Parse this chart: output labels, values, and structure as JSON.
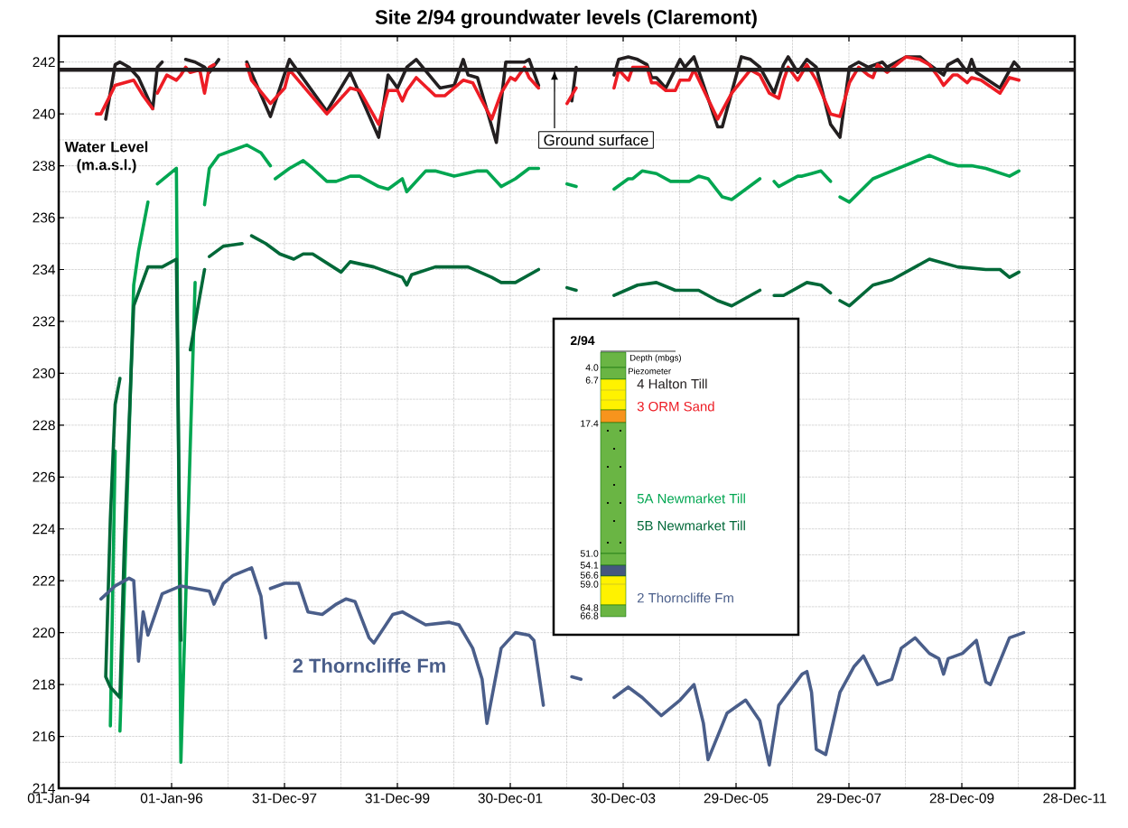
{
  "chart_data": {
    "type": "line",
    "title": "Site 2/94 groundwater levels (Claremont)",
    "ylabel": "Water Level (m.a.s.l.)",
    "xlim": [
      "1994-01-01",
      "2011-12-28"
    ],
    "ylim": [
      214,
      243
    ],
    "xticks": [
      {
        "value": "1994-01-01",
        "label": "01-Jan-94"
      },
      {
        "value": "1996-01-01",
        "label": "01-Jan-96"
      },
      {
        "value": "1997-12-31",
        "label": "31-Dec-97"
      },
      {
        "value": "1999-12-31",
        "label": "31-Dec-99"
      },
      {
        "value": "2001-12-30",
        "label": "30-Dec-01"
      },
      {
        "value": "2003-12-30",
        "label": "30-Dec-03"
      },
      {
        "value": "2005-12-29",
        "label": "29-Dec-05"
      },
      {
        "value": "2007-12-29",
        "label": "29-Dec-07"
      },
      {
        "value": "2009-12-28",
        "label": "28-Dec-09"
      },
      {
        "value": "2011-12-28",
        "label": "28-Dec-11"
      }
    ],
    "yticks": [
      214,
      216,
      218,
      220,
      222,
      224,
      226,
      228,
      230,
      232,
      234,
      236,
      238,
      240,
      242
    ],
    "grid": true,
    "legend": "center",
    "ref_lines": [
      {
        "axis": "y",
        "value": 241.7,
        "label": "Ground surface",
        "color": "#231f20"
      }
    ],
    "annotations": [
      "2/94",
      "Depth (mbgs)",
      "Piezometer",
      "4.0",
      "6.7",
      "17.4",
      "51.0",
      "54.1",
      "56.6",
      "59.0",
      "64.8",
      "66.8",
      "2 Thorncliffe Fm"
    ],
    "series": [
      {
        "name": "4 Halton Till",
        "color": "#231f20",
        "x": [
          "1994-11",
          "1995-01",
          "1995-02",
          "1995-04",
          "1995-06",
          "1995-09",
          "1995-10",
          "1995-11",
          null,
          "1996-04",
          "1996-06",
          "1996-08",
          "1996-09",
          "1996-11",
          null,
          "1997-05",
          "1997-10",
          "1998-02",
          "1998-10",
          "1999-03",
          "1999-09",
          "1999-11",
          "2000-01",
          "2000-03",
          "2000-05",
          "2000-10",
          "2001-01",
          "2001-03",
          "2001-04",
          "2001-06",
          "2001-10",
          "2001-12",
          "2002-04",
          "2002-05",
          "2002-07",
          null,
          "2003-02",
          "2003-03",
          null,
          "2003-11",
          "2003-12",
          "2004-02",
          "2004-04",
          "2004-06",
          "2004-07",
          "2004-08",
          "2004-10",
          "2005-01",
          "2005-02",
          "2005-04",
          "2005-09",
          "2005-10",
          "2006-02",
          "2006-04",
          "2006-06",
          "2006-09",
          "2006-11",
          "2006-12",
          "2007-02",
          "2007-04",
          "2007-06",
          "2007-09",
          "2007-11",
          "2008-01",
          "2008-03",
          "2008-05",
          "2008-08",
          "2008-09",
          "2009-01",
          "2009-04",
          "2009-06",
          "2009-09",
          "2009-10",
          "2009-12",
          "2010-02",
          "2010-03",
          "2010-04",
          "2010-09",
          "2010-12",
          "2011-01"
        ],
        "values": [
          239.8,
          241.9,
          242.0,
          241.8,
          241.4,
          240.2,
          241.8,
          242.0,
          null,
          242.1,
          242.0,
          241.8,
          241.6,
          242.1,
          null,
          242.0,
          239.9,
          242.1,
          240.1,
          241.6,
          239.1,
          241.5,
          241.0,
          241.8,
          242.1,
          241.0,
          241.1,
          242.1,
          241.5,
          241.4,
          238.9,
          242.0,
          242.0,
          242.1,
          241.1,
          null,
          240.5,
          241.8,
          null,
          241.5,
          242.1,
          242.2,
          242.1,
          241.9,
          241.4,
          241.4,
          241.0,
          242.1,
          241.8,
          242.2,
          239.5,
          239.5,
          242.2,
          242.1,
          241.8,
          240.8,
          241.9,
          242.2,
          241.6,
          242.1,
          241.8,
          239.6,
          239.1,
          241.8,
          242.0,
          241.8,
          242.0,
          241.8,
          242.2,
          242.2,
          241.9,
          241.5,
          241.9,
          242.1,
          241.6,
          242.1,
          241.6,
          241.0,
          242.0,
          241.8
        ]
      },
      {
        "name": "3 ORM Sand",
        "color": "#ed1c24",
        "x": [
          "1994-09",
          "1994-10",
          "1995-01",
          "1995-05",
          "1995-07",
          "1995-09",
          null,
          "1995-10",
          "1995-12",
          "1996-02",
          "1996-03",
          "1996-04",
          "1996-05",
          "1996-07",
          "1996-08",
          "1996-09",
          "1996-10",
          null,
          "1997-05",
          "1997-06",
          "1997-10",
          "1998-01",
          "1998-02",
          "1998-10",
          "1999-03",
          "1999-05",
          "1999-09",
          "1999-11",
          "2000-01",
          "2000-02",
          "2000-03",
          "2000-05",
          "2000-09",
          "2000-11",
          "2001-03",
          "2001-05",
          "2001-07",
          "2001-09",
          "2001-11",
          "2002-01",
          "2002-02",
          "2002-04",
          "2002-05",
          "2002-07",
          null,
          "2003-01",
          "2003-03",
          null,
          "2003-11",
          "2003-12",
          "2004-02",
          "2004-03",
          "2004-06",
          "2004-07",
          "2004-08",
          "2004-10",
          "2004-12",
          "2005-01",
          "2005-03",
          "2005-04",
          "2005-09",
          "2005-12",
          "2006-04",
          "2006-06",
          "2006-08",
          "2006-10",
          "2006-11",
          "2006-12",
          "2007-02",
          "2007-04",
          "2007-06",
          "2007-09",
          "2007-11",
          "2008-01",
          "2008-03",
          "2008-05",
          "2008-06",
          "2008-07",
          "2008-09",
          "2009-01",
          "2009-04",
          "2009-06",
          "2009-08",
          "2009-09",
          "2009-11",
          "2009-12",
          "2010-02",
          "2010-03",
          "2010-05",
          "2010-09",
          "2010-11",
          "2011-01"
        ],
        "values": [
          240.0,
          240.0,
          241.1,
          241.3,
          240.7,
          240.2,
          null,
          240.8,
          241.5,
          241.3,
          241.5,
          241.8,
          241.6,
          241.7,
          240.8,
          241.8,
          241.9,
          null,
          241.9,
          241.3,
          240.4,
          241.0,
          241.7,
          240.0,
          241.0,
          240.9,
          239.6,
          240.9,
          240.9,
          240.5,
          240.9,
          241.4,
          240.7,
          240.7,
          241.3,
          241.2,
          240.5,
          239.8,
          240.8,
          241.4,
          241.3,
          241.8,
          241.4,
          241.0,
          null,
          240.4,
          241.0,
          null,
          241.0,
          241.7,
          241.3,
          241.8,
          241.8,
          241.2,
          241.2,
          240.9,
          240.9,
          241.3,
          241.3,
          241.7,
          239.8,
          240.8,
          241.7,
          241.5,
          240.8,
          240.6,
          241.3,
          241.8,
          241.3,
          241.9,
          241.3,
          240.0,
          239.9,
          241.2,
          241.8,
          241.5,
          241.4,
          241.9,
          241.6,
          242.2,
          242.1,
          241.9,
          241.4,
          241.1,
          241.5,
          241.5,
          241.2,
          241.4,
          241.3,
          240.8,
          241.4,
          241.3
        ]
      },
      {
        "name": "5A Newmarket Till",
        "color": "#00a651",
        "x": [
          "1994-12",
          "1995-01",
          null,
          "1995-02",
          "1995-05",
          "1995-06",
          "1995-08",
          null,
          "1995-10",
          "1996-02",
          "1996-03",
          "1996-06",
          null,
          "1996-08",
          "1996-09",
          "1996-11",
          "1997-05",
          "1997-06",
          "1997-08",
          "1997-10",
          null,
          "1997-11",
          "1998-02",
          "1998-05",
          "1998-07",
          "1998-10",
          "1998-12",
          "1999-03",
          "1999-05",
          "1999-09",
          "1999-11",
          "2000-02",
          "2000-03",
          "2000-07",
          "2000-09",
          "2001-01",
          "2001-06",
          "2001-08",
          "2001-11",
          "2002-02",
          "2002-05",
          "2002-07",
          null,
          "2003-01",
          "2003-03",
          null,
          "2003-11",
          "2004-02",
          "2004-03",
          "2004-05",
          "2004-08",
          "2004-11",
          "2005-03",
          "2005-05",
          "2005-07",
          "2005-10",
          "2005-12",
          "2006-06",
          null,
          "2006-09",
          "2006-10",
          "2007-02",
          "2007-03",
          "2007-05",
          "2007-07",
          "2007-09",
          null,
          "2007-11",
          "2008-01",
          "2008-06",
          "2008-10",
          "2009-02",
          "2009-06",
          "2009-10",
          "2009-12",
          "2010-03",
          "2010-06",
          "2010-11",
          "2011-01"
        ],
        "values": [
          216.4,
          227.0,
          null,
          216.2,
          233.4,
          234.7,
          236.6,
          null,
          237.3,
          237.9,
          215.0,
          233.5,
          null,
          236.5,
          237.9,
          238.4,
          238.8,
          238.7,
          238.5,
          238.0,
          null,
          237.5,
          237.9,
          238.2,
          237.9,
          237.4,
          237.4,
          237.6,
          237.6,
          237.2,
          237.1,
          237.5,
          237.0,
          237.8,
          237.8,
          237.6,
          237.8,
          237.8,
          237.2,
          237.5,
          237.9,
          237.9,
          null,
          237.3,
          237.2,
          null,
          237.1,
          237.5,
          237.5,
          237.8,
          237.7,
          237.4,
          237.4,
          237.6,
          237.5,
          236.8,
          236.7,
          237.5,
          null,
          237.4,
          237.2,
          237.6,
          237.6,
          237.7,
          237.8,
          237.4,
          null,
          236.8,
          236.6,
          237.5,
          237.8,
          238.1,
          238.4,
          238.1,
          238.0,
          238.0,
          237.9,
          237.6,
          237.8
        ]
      },
      {
        "name": "5B Newmarket Till",
        "color": "#006838",
        "x": [
          "1995-02",
          "1995-01",
          "1994-12",
          "1994-11",
          "1994-12",
          "1995-02",
          "1995-03",
          "1995-05",
          "1995-08",
          "1995-11",
          "1996-02",
          "1996-03",
          null,
          "1996-05",
          "1996-08",
          null,
          "1996-09",
          "1996-12",
          "1997-04",
          null,
          "1997-06",
          "1997-09",
          "1997-12",
          "1998-03",
          "1998-05",
          "1998-07",
          "1999-01",
          "1999-03",
          "1999-08",
          "2000-02",
          "2000-03",
          "2000-04",
          "2000-09",
          "2001-04",
          "2001-09",
          "2001-11",
          "2002-02",
          "2002-07",
          null,
          "2003-01",
          "2003-03",
          null,
          "2003-11",
          "2004-04",
          "2004-08",
          "2004-12",
          "2005-05",
          "2005-09",
          "2005-12",
          "2006-06",
          null,
          "2006-09",
          "2006-11",
          "2007-04",
          "2007-07",
          "2007-09",
          null,
          "2007-11",
          "2008-01",
          "2008-06",
          "2008-10",
          "2009-06",
          "2009-12",
          "2010-06",
          "2010-09",
          "2010-11",
          "2011-01"
        ],
        "values": [
          229.8,
          228.8,
          224.4,
          218.3,
          217.9,
          217.5,
          223.3,
          232.6,
          234.1,
          234.1,
          234.4,
          219.7,
          null,
          230.9,
          234.0,
          null,
          234.5,
          234.9,
          235.0,
          null,
          235.3,
          235.0,
          234.6,
          234.4,
          234.6,
          234.6,
          233.9,
          234.3,
          234.1,
          233.7,
          233.4,
          233.8,
          234.1,
          234.1,
          233.7,
          233.5,
          233.5,
          234.0,
          null,
          233.3,
          233.2,
          null,
          233.0,
          233.4,
          233.5,
          233.2,
          233.2,
          232.8,
          232.6,
          233.2,
          null,
          233.0,
          233.0,
          233.5,
          233.4,
          233.1,
          null,
          232.8,
          232.6,
          233.4,
          233.6,
          234.4,
          234.1,
          234.0,
          234.0,
          233.7,
          233.9
        ]
      },
      {
        "name": "2 Thorncliffe Fm",
        "color": "#4a5e8a",
        "x": [
          "1994-10",
          "1995-01",
          "1995-04",
          "1995-05",
          "1995-06",
          "1995-07",
          "1995-08",
          "1995-11",
          "1996-03",
          "1996-09",
          "1996-10",
          "1996-12",
          "1997-02",
          "1997-06",
          "1997-08",
          "1997-09",
          null,
          "1997-10",
          "1998-01",
          "1998-04",
          "1998-06",
          "1998-09",
          "1998-12",
          "1999-02",
          "1999-04",
          "1999-07",
          "1999-08",
          "1999-12",
          "2000-02",
          "2000-07",
          "2000-12",
          "2001-02",
          "2001-05",
          "2001-07",
          "2001-08",
          "2001-11",
          "2002-02",
          "2002-05",
          "2002-06",
          "2002-08",
          null,
          "2003-02",
          "2003-04",
          null,
          "2003-11",
          "2004-02",
          "2004-05",
          "2004-09",
          "2005-01",
          "2005-04",
          "2005-06",
          "2005-07",
          "2005-11",
          "2006-03",
          "2006-06",
          "2006-08",
          "2006-10",
          "2007-03",
          "2007-04",
          "2007-05",
          "2007-06",
          "2007-08",
          "2007-11",
          "2008-02",
          "2008-04",
          "2008-07",
          "2008-10",
          "2008-12",
          "2009-03",
          "2009-06",
          "2009-08",
          "2009-09",
          "2009-10",
          "2010-01",
          "2010-04",
          "2010-06",
          "2010-07",
          "2010-11",
          "2011-02"
        ],
        "values": [
          221.3,
          221.8,
          222.1,
          222.0,
          218.9,
          220.8,
          219.9,
          221.5,
          221.8,
          221.6,
          221.1,
          221.9,
          222.2,
          222.5,
          221.4,
          219.8,
          null,
          221.7,
          221.9,
          221.9,
          220.8,
          220.7,
          221.1,
          221.3,
          221.2,
          219.8,
          219.6,
          220.7,
          220.8,
          220.3,
          220.4,
          220.3,
          219.4,
          218.2,
          216.5,
          219.4,
          220.0,
          219.9,
          219.7,
          217.2,
          null,
          218.3,
          218.2,
          null,
          217.5,
          217.9,
          217.5,
          216.8,
          217.4,
          218.0,
          216.5,
          215.1,
          216.9,
          217.4,
          216.6,
          214.9,
          217.2,
          218.4,
          218.5,
          217.7,
          215.5,
          215.3,
          217.7,
          218.7,
          219.1,
          218.0,
          218.2,
          219.4,
          219.8,
          219.2,
          219.0,
          218.4,
          219.0,
          219.2,
          219.7,
          218.1,
          218.0,
          219.8,
          220.0
        ]
      }
    ]
  }
}
